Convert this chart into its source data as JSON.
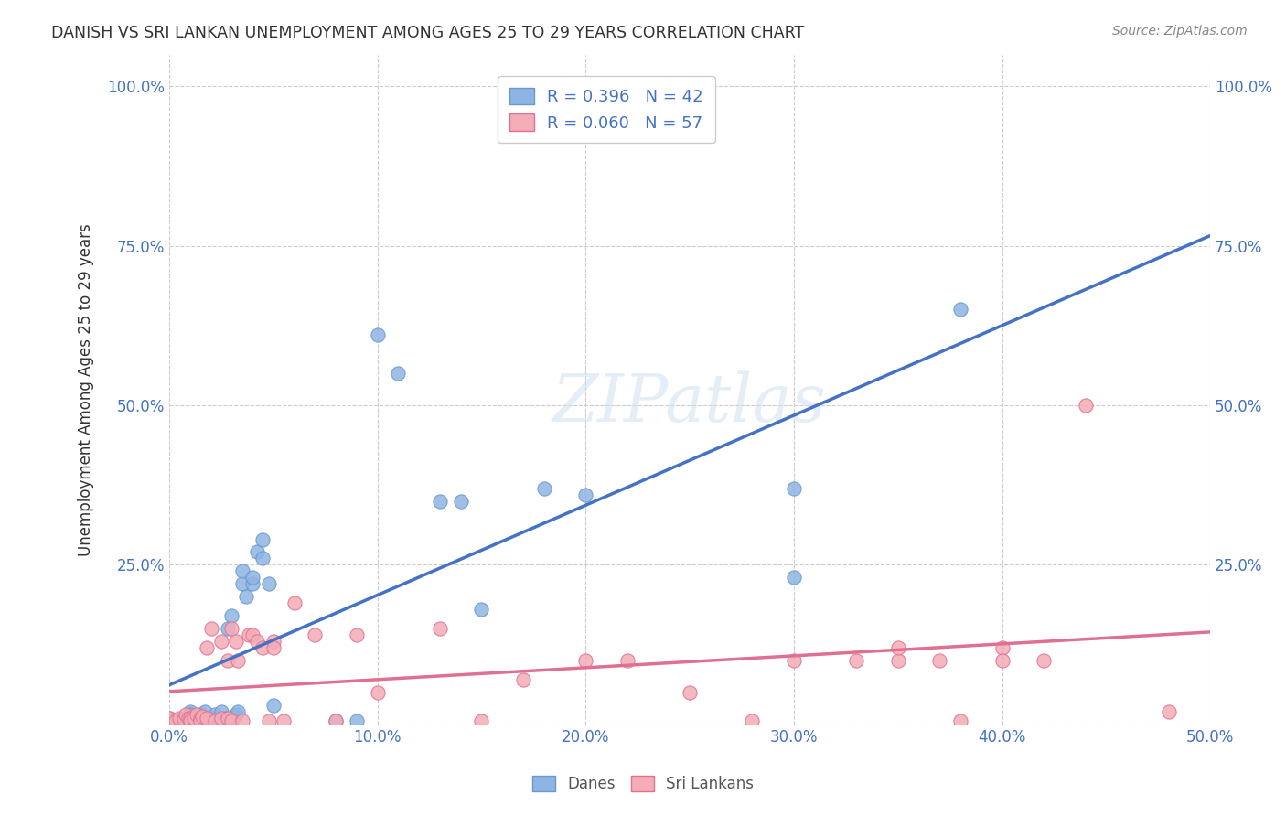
{
  "title": "DANISH VS SRI LANKAN UNEMPLOYMENT AMONG AGES 25 TO 29 YEARS CORRELATION CHART",
  "source": "Source: ZipAtlas.com",
  "xlabel": "",
  "ylabel": "Unemployment Among Ages 25 to 29 years",
  "xlim": [
    0.0,
    0.5
  ],
  "ylim": [
    0.0,
    1.05
  ],
  "xticks": [
    0.0,
    0.1,
    0.2,
    0.3,
    0.4,
    0.5
  ],
  "xticklabels": [
    "0.0%",
    "10.0%",
    "20.0%",
    "30.0%",
    "40.0%",
    "50.0%"
  ],
  "yticks": [
    0.0,
    0.25,
    0.5,
    0.75,
    1.0
  ],
  "yticklabels": [
    "",
    "25.0%",
    "50.0%",
    "75.0%",
    "100.0%"
  ],
  "danes_color": "#8eb4e3",
  "danes_edge": "#6699cc",
  "srilankans_color": "#f4acb7",
  "srilankans_edge": "#e07090",
  "line_danes_color": "#4472c4",
  "line_sri_color": "#e07090",
  "danes_R": 0.396,
  "danes_N": 42,
  "sri_R": 0.06,
  "sri_N": 57,
  "legend_label_danes": "Danes",
  "legend_label_sri": "Sri Lankans",
  "danes_x": [
    0.0,
    0.005,
    0.008,
    0.01,
    0.01,
    0.012,
    0.015,
    0.015,
    0.015,
    0.017,
    0.018,
    0.02,
    0.022,
    0.025,
    0.027,
    0.028,
    0.03,
    0.03,
    0.032,
    0.033,
    0.035,
    0.035,
    0.037,
    0.04,
    0.04,
    0.042,
    0.045,
    0.045,
    0.048,
    0.05,
    0.08,
    0.09,
    0.1,
    0.11,
    0.13,
    0.14,
    0.15,
    0.18,
    0.2,
    0.3,
    0.3,
    0.38
  ],
  "danes_y": [
    0.01,
    0.005,
    0.0,
    0.02,
    0.015,
    0.01,
    0.005,
    0.01,
    0.015,
    0.02,
    0.005,
    0.01,
    0.015,
    0.02,
    0.01,
    0.15,
    0.005,
    0.17,
    0.015,
    0.02,
    0.22,
    0.24,
    0.2,
    0.22,
    0.23,
    0.27,
    0.26,
    0.29,
    0.22,
    0.03,
    0.005,
    0.005,
    0.61,
    0.55,
    0.35,
    0.35,
    0.18,
    0.37,
    0.36,
    0.37,
    0.23,
    0.65
  ],
  "sri_x": [
    0.0,
    0.003,
    0.005,
    0.007,
    0.008,
    0.009,
    0.01,
    0.01,
    0.012,
    0.013,
    0.015,
    0.015,
    0.016,
    0.018,
    0.018,
    0.02,
    0.022,
    0.025,
    0.025,
    0.028,
    0.028,
    0.03,
    0.03,
    0.032,
    0.033,
    0.035,
    0.038,
    0.04,
    0.042,
    0.045,
    0.048,
    0.05,
    0.05,
    0.055,
    0.06,
    0.07,
    0.08,
    0.09,
    0.1,
    0.13,
    0.15,
    0.17,
    0.2,
    0.22,
    0.25,
    0.28,
    0.3,
    0.33,
    0.35,
    0.35,
    0.37,
    0.38,
    0.4,
    0.4,
    0.42,
    0.44,
    0.48
  ],
  "sri_y": [
    0.01,
    0.005,
    0.01,
    0.008,
    0.015,
    0.01,
    0.01,
    0.005,
    0.01,
    0.015,
    0.01,
    0.005,
    0.012,
    0.01,
    0.12,
    0.15,
    0.005,
    0.01,
    0.13,
    0.01,
    0.1,
    0.005,
    0.15,
    0.13,
    0.1,
    0.005,
    0.14,
    0.14,
    0.13,
    0.12,
    0.005,
    0.13,
    0.12,
    0.005,
    0.19,
    0.14,
    0.005,
    0.14,
    0.05,
    0.15,
    0.005,
    0.07,
    0.1,
    0.1,
    0.05,
    0.005,
    0.1,
    0.1,
    0.1,
    0.12,
    0.1,
    0.005,
    0.12,
    0.1,
    0.1,
    0.5,
    0.02
  ],
  "watermark": "ZIPatlas",
  "background_color": "#ffffff",
  "grid_color": "#cccccc"
}
